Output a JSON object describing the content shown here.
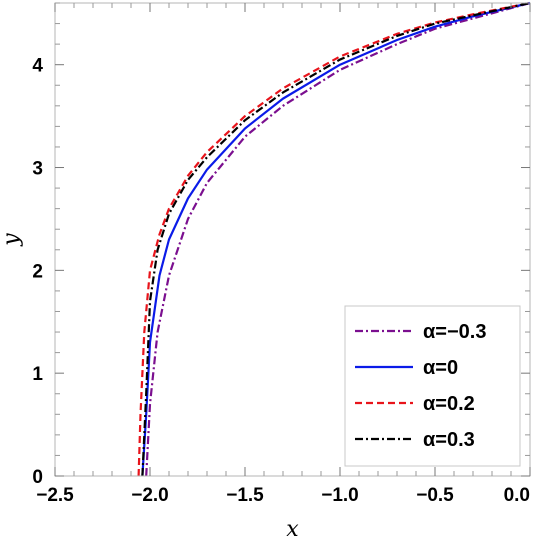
{
  "chart_data": {
    "type": "line",
    "title": "",
    "xlabel": "x",
    "ylabel": "y",
    "xlim": [
      -2.5,
      0.0
    ],
    "ylim": [
      0,
      4.6
    ],
    "x_ticks": [
      -2.5,
      -2.0,
      -1.5,
      -1.0,
      -0.5,
      0.0
    ],
    "x_tick_labels": [
      "−2.5",
      "−2.0",
      "−1.5",
      "−1.0",
      "−0.5",
      "0.0"
    ],
    "y_ticks": [
      0,
      1,
      2,
      3,
      4
    ],
    "y_tick_labels": [
      "0",
      "1",
      "2",
      "3",
      "4"
    ],
    "grid": false,
    "legend_position": "bottom-right",
    "series": [
      {
        "name": "α=−0.3",
        "color": "#7B0F8F",
        "dash": "dashdot",
        "x": [
          -2.02,
          -2.0,
          -1.96,
          -1.9,
          -1.8,
          -1.7,
          -1.5,
          -1.3,
          -1.0,
          -0.7,
          -0.5,
          -0.3,
          0.0
        ],
        "y": [
          0.0,
          0.7,
          1.4,
          1.95,
          2.5,
          2.85,
          3.3,
          3.6,
          3.95,
          4.2,
          4.35,
          4.45,
          4.6
        ]
      },
      {
        "name": "α=0",
        "color": "#0B1BE8",
        "dash": "solid",
        "x": [
          -2.04,
          -2.02,
          -2.0,
          -1.95,
          -1.9,
          -1.8,
          -1.7,
          -1.5,
          -1.3,
          -1.0,
          -0.7,
          -0.5,
          -0.3,
          0.0
        ],
        "y": [
          0.0,
          0.6,
          1.3,
          1.95,
          2.3,
          2.7,
          2.98,
          3.38,
          3.67,
          4.0,
          4.24,
          4.37,
          4.47,
          4.6
        ]
      },
      {
        "name": "α=0.2",
        "color": "#E8141B",
        "dash": "dashed",
        "x": [
          -2.06,
          -2.05,
          -2.03,
          -2.0,
          -1.95,
          -1.9,
          -1.8,
          -1.7,
          -1.5,
          -1.3,
          -1.0,
          -0.7,
          -0.5,
          -0.3,
          0.0
        ],
        "y": [
          0.0,
          0.6,
          1.4,
          2.0,
          2.35,
          2.6,
          2.92,
          3.15,
          3.5,
          3.77,
          4.08,
          4.3,
          4.41,
          4.49,
          4.6
        ]
      },
      {
        "name": "α=0.3",
        "color": "#000000",
        "dash": "dashdot",
        "x": [
          -2.04,
          -2.02,
          -2.0,
          -1.96,
          -1.9,
          -1.8,
          -1.7,
          -1.5,
          -1.3,
          -1.0,
          -0.7,
          -0.5,
          -0.3,
          0.0
        ],
        "y": [
          0.0,
          0.8,
          1.7,
          2.2,
          2.55,
          2.88,
          3.1,
          3.46,
          3.73,
          4.05,
          4.28,
          4.4,
          4.48,
          4.6
        ]
      }
    ]
  }
}
